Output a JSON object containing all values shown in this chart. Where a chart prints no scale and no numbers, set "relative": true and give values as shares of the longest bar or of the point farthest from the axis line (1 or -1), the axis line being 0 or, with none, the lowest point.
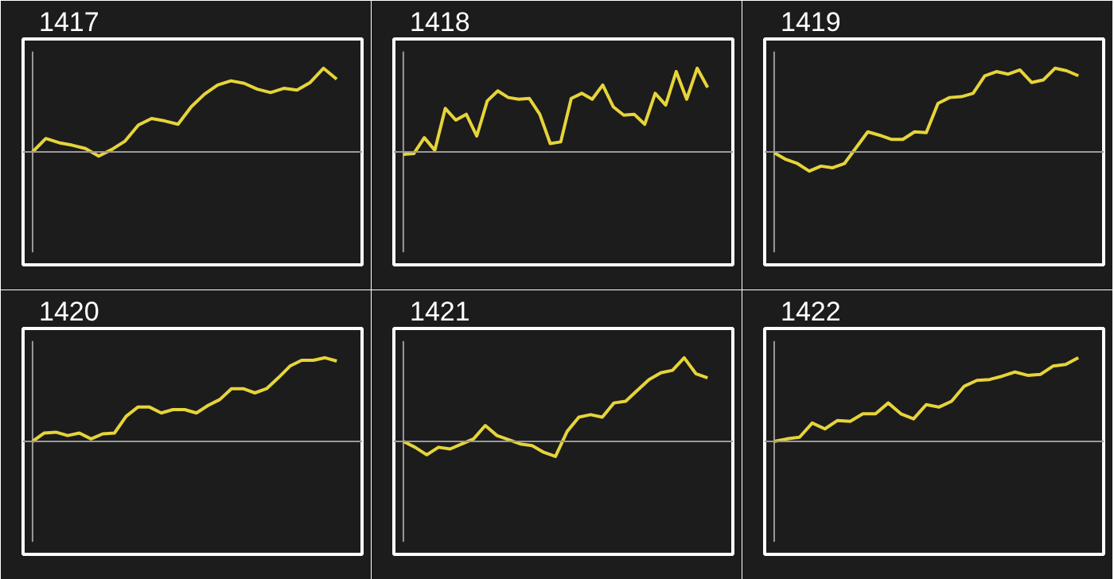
{
  "chart_data": [
    {
      "type": "line",
      "title": "1417",
      "color": "#e6d43a",
      "relative": true,
      "categories": [
        null,
        null,
        null,
        null,
        null,
        null,
        null,
        null,
        null,
        null,
        null,
        null,
        null,
        null,
        null,
        null,
        null,
        null,
        null,
        null,
        null,
        null,
        null,
        null
      ],
      "values": [
        0,
        0.16,
        0.11,
        0.08,
        0.04,
        -0.05,
        0.03,
        0.13,
        0.32,
        0.4,
        0.37,
        0.33,
        0.54,
        0.69,
        0.8,
        0.85,
        0.82,
        0.75,
        0.71,
        0.76,
        0.74,
        0.83,
        1,
        0.87
      ]
    },
    {
      "type": "line",
      "title": "1418",
      "color": "#e6d43a",
      "relative": true,
      "categories": [
        null,
        null,
        null,
        null,
        null,
        null,
        null,
        null,
        null,
        null,
        null,
        null,
        null,
        null,
        null,
        null,
        null,
        null,
        null,
        null,
        null,
        null,
        null,
        null,
        null,
        null,
        null,
        null,
        null,
        null
      ],
      "values": [
        -0.03,
        -0.02,
        0.17,
        0.02,
        0.52,
        0.38,
        0.45,
        0.19,
        0.61,
        0.73,
        0.65,
        0.63,
        0.64,
        0.45,
        0.1,
        0.12,
        0.64,
        0.7,
        0.63,
        0.8,
        0.54,
        0.44,
        0.45,
        0.33,
        0.7,
        0.56,
        0.96,
        0.63,
        1,
        0.77
      ]
    },
    {
      "type": "line",
      "title": "1419",
      "color": "#e6d43a",
      "relative": true,
      "categories": [
        null,
        null,
        null,
        null,
        null,
        null,
        null,
        null,
        null,
        null,
        null,
        null,
        null,
        null,
        null,
        null,
        null,
        null,
        null,
        null,
        null,
        null,
        null,
        null,
        null,
        null,
        null
      ],
      "values": [
        -0.01,
        -0.09,
        -0.14,
        -0.23,
        -0.17,
        -0.19,
        -0.14,
        0.05,
        0.24,
        0.2,
        0.15,
        0.15,
        0.24,
        0.23,
        0.58,
        0.65,
        0.66,
        0.7,
        0.91,
        0.96,
        0.93,
        0.98,
        0.83,
        0.86,
        1,
        0.97,
        0.91
      ]
    },
    {
      "type": "line",
      "title": "1420",
      "color": "#e6d43a",
      "relative": true,
      "categories": [
        null,
        null,
        null,
        null,
        null,
        null,
        null,
        null,
        null,
        null,
        null,
        null,
        null,
        null,
        null,
        null,
        null,
        null,
        null,
        null,
        null,
        null,
        null,
        null,
        null,
        null,
        null
      ],
      "values": [
        0,
        0.1,
        0.11,
        0.07,
        0.1,
        0.03,
        0.09,
        0.1,
        0.3,
        0.41,
        0.41,
        0.34,
        0.38,
        0.38,
        0.34,
        0.43,
        0.5,
        0.63,
        0.63,
        0.58,
        0.63,
        0.76,
        0.9,
        0.97,
        0.97,
        1,
        0.96
      ]
    },
    {
      "type": "line",
      "title": "1421",
      "color": "#e6d43a",
      "relative": true,
      "categories": [
        null,
        null,
        null,
        null,
        null,
        null,
        null,
        null,
        null,
        null,
        null,
        null,
        null,
        null,
        null,
        null,
        null,
        null,
        null,
        null,
        null,
        null,
        null,
        null,
        null,
        null,
        null
      ],
      "values": [
        0,
        -0.07,
        -0.16,
        -0.07,
        -0.09,
        -0.03,
        0.03,
        0.19,
        0.07,
        0.02,
        -0.03,
        -0.05,
        -0.13,
        -0.18,
        0.12,
        0.29,
        0.32,
        0.29,
        0.46,
        0.48,
        0.61,
        0.74,
        0.82,
        0.85,
        1,
        0.81,
        0.76
      ]
    },
    {
      "type": "line",
      "title": "1422",
      "color": "#e6d43a",
      "relative": true,
      "categories": [
        null,
        null,
        null,
        null,
        null,
        null,
        null,
        null,
        null,
        null,
        null,
        null,
        null,
        null,
        null,
        null,
        null,
        null,
        null,
        null,
        null,
        null,
        null,
        null,
        null
      ],
      "values": [
        0,
        0.03,
        0.05,
        0.22,
        0.15,
        0.25,
        0.24,
        0.33,
        0.33,
        0.46,
        0.33,
        0.27,
        0.44,
        0.41,
        0.48,
        0.66,
        0.73,
        0.74,
        0.78,
        0.83,
        0.79,
        0.8,
        0.9,
        0.92,
        1
      ]
    }
  ]
}
